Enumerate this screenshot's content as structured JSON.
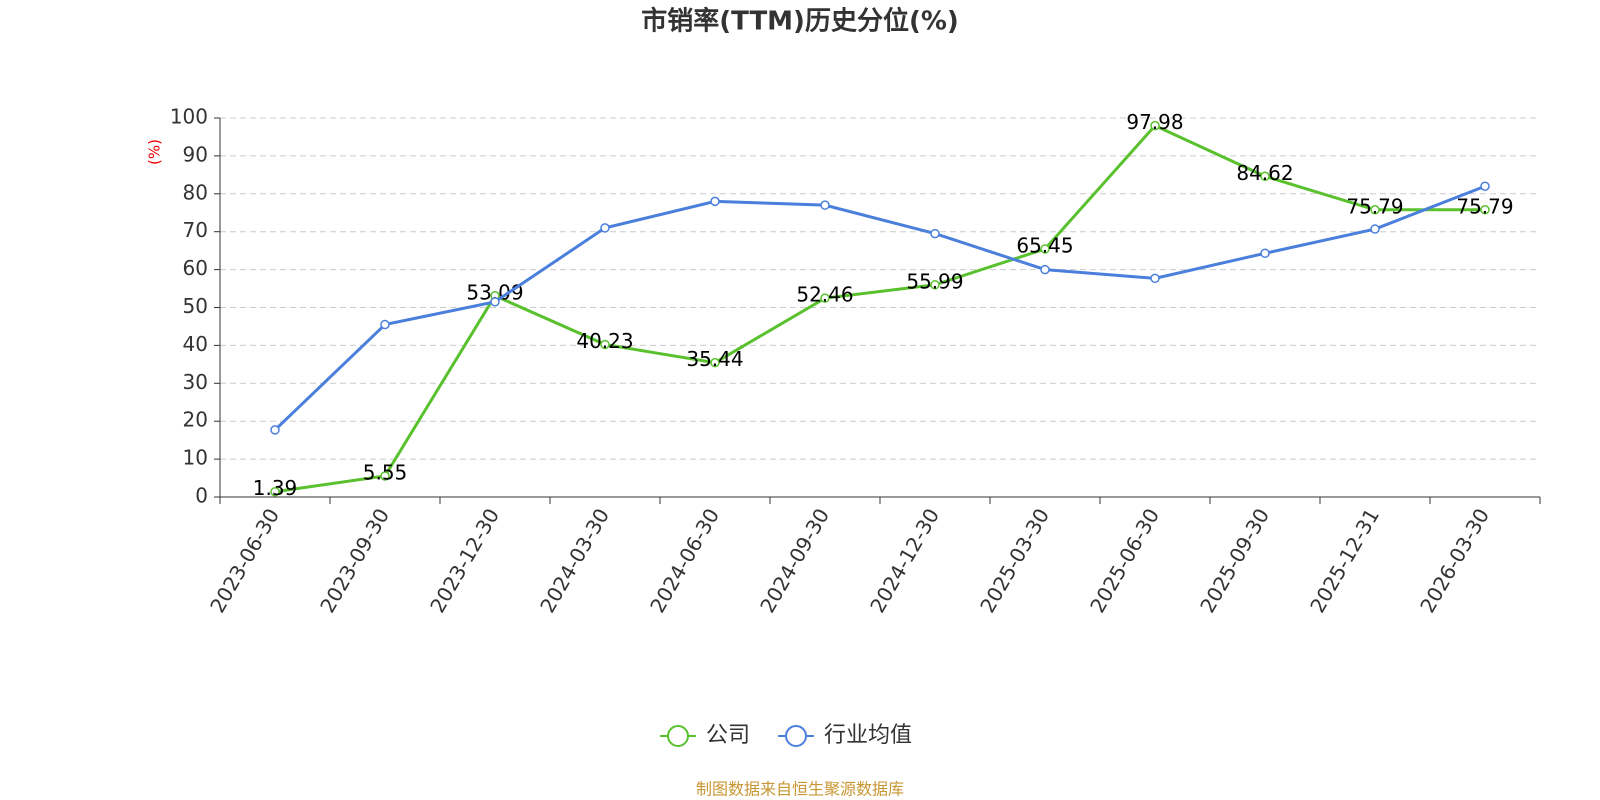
{
  "chart_data": {
    "type": "line",
    "title": "市销率(TTM)历史分位(%)",
    "y_label": "(%)",
    "categories": [
      "2023-06-30",
      "2023-09-30",
      "2023-12-30",
      "2024-03-30",
      "2024-06-30",
      "2024-09-30",
      "2024-12-30",
      "2025-03-30",
      "2025-06-30",
      "2025-09-30",
      "2025-12-31",
      "2026-03-30"
    ],
    "series": [
      {
        "name": "公司",
        "color": "#5ac12e",
        "values": [
          1.39,
          5.55,
          53.09,
          40.23,
          35.44,
          52.46,
          55.99,
          65.45,
          97.98,
          84.62,
          75.79,
          75.79
        ],
        "show_labels": true
      },
      {
        "name": "行业均值",
        "color": "#4a7fdc",
        "values": [
          17.7,
          45.5,
          51.5,
          71,
          78,
          77,
          69.5,
          60,
          57.7,
          64.3,
          70.7,
          82
        ],
        "show_labels": false
      }
    ],
    "ylim": [
      0,
      100
    ],
    "yticks": [
      0,
      10,
      20,
      30,
      40,
      50,
      60,
      70,
      80,
      90,
      100
    ],
    "grid": true,
    "source": "制图数据来自恒生聚源数据库"
  }
}
